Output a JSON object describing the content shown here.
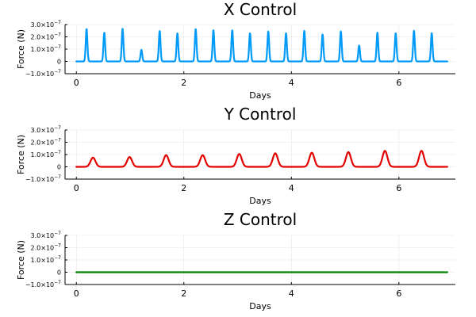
{
  "chart_data": [
    {
      "type": "line",
      "title": "X Control",
      "xlabel": "Days",
      "ylabel": "Force (N)",
      "xlim": [
        -0.21,
        7.05
      ],
      "ylim": [
        -1e-07,
        3e-07
      ],
      "xticks": [
        0,
        2,
        4,
        6
      ],
      "xtick_labels": [
        "0",
        "2",
        "4",
        "6"
      ],
      "yticks": [
        -1e-07,
        0,
        1e-07,
        2e-07,
        3e-07
      ],
      "ytick_labels": [
        {
          "mant": "−1.0×10",
          "exp": "−7"
        },
        {
          "mant": "0",
          "exp": ""
        },
        {
          "mant": "1.0×10",
          "exp": "−7"
        },
        {
          "mant": "2.0×10",
          "exp": "−7"
        },
        {
          "mant": "3.0×10",
          "exp": "−7"
        }
      ],
      "grid": true,
      "legend": "none",
      "series": [
        {
          "color": "#009af9",
          "x_range": [
            0,
            6.9
          ],
          "pulse_width": 0.022,
          "pulses": [
            {
              "x": 0.19,
              "y": 2.65e-07
            },
            {
              "x": 0.52,
              "y": 2.35e-07
            },
            {
              "x": 0.86,
              "y": 2.68e-07
            },
            {
              "x": 1.21,
              "y": 9.5e-08
            },
            {
              "x": 1.55,
              "y": 2.5e-07
            },
            {
              "x": 1.88,
              "y": 2.3e-07
            },
            {
              "x": 2.22,
              "y": 2.65e-07
            },
            {
              "x": 2.55,
              "y": 2.55e-07
            },
            {
              "x": 2.9,
              "y": 2.55e-07
            },
            {
              "x": 3.23,
              "y": 2.3e-07
            },
            {
              "x": 3.57,
              "y": 2.45e-07
            },
            {
              "x": 3.9,
              "y": 2.3e-07
            },
            {
              "x": 4.24,
              "y": 2.5e-07
            },
            {
              "x": 4.58,
              "y": 2.2e-07
            },
            {
              "x": 4.92,
              "y": 2.45e-07
            },
            {
              "x": 5.26,
              "y": 1.3e-07
            },
            {
              "x": 5.6,
              "y": 2.35e-07
            },
            {
              "x": 5.94,
              "y": 2.3e-07
            },
            {
              "x": 6.28,
              "y": 2.5e-07
            },
            {
              "x": 6.61,
              "y": 2.3e-07
            }
          ]
        }
      ]
    },
    {
      "type": "line",
      "title": "Y Control",
      "xlabel": "Days",
      "ylabel": "Force (N)",
      "xlim": [
        -0.21,
        7.05
      ],
      "ylim": [
        -1e-07,
        3e-07
      ],
      "xticks": [
        0,
        2,
        4,
        6
      ],
      "xtick_labels": [
        "0",
        "2",
        "4",
        "6"
      ],
      "yticks": [
        -1e-07,
        0,
        1e-07,
        2e-07,
        3e-07
      ],
      "ytick_labels": [
        {
          "mant": "−1.0×10",
          "exp": "−7"
        },
        {
          "mant": "0",
          "exp": ""
        },
        {
          "mant": "1.0×10",
          "exp": "−7"
        },
        {
          "mant": "2.0×10",
          "exp": "−7"
        },
        {
          "mant": "3.0×10",
          "exp": "−7"
        }
      ],
      "grid": true,
      "legend": "none",
      "series": [
        {
          "color": "#e30000",
          "x_range": [
            0,
            6.9
          ],
          "pulse_width": 0.065,
          "pulses": [
            {
              "x": 0.31,
              "y": 7.5e-08
            },
            {
              "x": 0.99,
              "y": 8e-08
            },
            {
              "x": 1.67,
              "y": 9.5e-08
            },
            {
              "x": 2.35,
              "y": 9.5e-08
            },
            {
              "x": 3.03,
              "y": 1.05e-07
            },
            {
              "x": 3.7,
              "y": 1.1e-07
            },
            {
              "x": 4.38,
              "y": 1.15e-07
            },
            {
              "x": 5.06,
              "y": 1.2e-07
            },
            {
              "x": 5.74,
              "y": 1.3e-07
            },
            {
              "x": 6.42,
              "y": 1.3e-07
            }
          ]
        }
      ]
    },
    {
      "type": "line",
      "title": "Z Control",
      "xlabel": "Days",
      "ylabel": "Force (N)",
      "xlim": [
        -0.21,
        7.05
      ],
      "ylim": [
        -1e-07,
        3e-07
      ],
      "xticks": [
        0,
        2,
        4,
        6
      ],
      "xtick_labels": [
        "0",
        "2",
        "4",
        "6"
      ],
      "yticks": [
        -1e-07,
        0,
        1e-07,
        2e-07,
        3e-07
      ],
      "ytick_labels": [
        {
          "mant": "−1.0×10",
          "exp": "−7"
        },
        {
          "mant": "0",
          "exp": ""
        },
        {
          "mant": "1.0×10",
          "exp": "−7"
        },
        {
          "mant": "2.0×10",
          "exp": "−7"
        },
        {
          "mant": "3.0×10",
          "exp": "−7"
        }
      ],
      "grid": true,
      "legend": "none",
      "series": [
        {
          "color": "#008000",
          "x_range": [
            0,
            6.9
          ],
          "pulse_width": 0.05,
          "pulses": []
        }
      ]
    }
  ]
}
